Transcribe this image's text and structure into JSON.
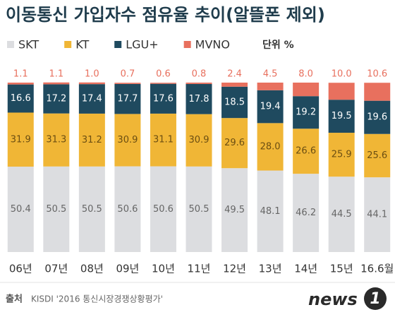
{
  "chart_data": {
    "type": "stacked-bar",
    "title": "이동통신 가입자수 점유율 추이(알뜰폰 제외)",
    "unit": "단위 %",
    "categories": [
      "06년",
      "07년",
      "08년",
      "09년",
      "10년",
      "11년",
      "12년",
      "13년",
      "14년",
      "15년",
      "16.6월"
    ],
    "ylim": [
      0,
      100
    ],
    "series": [
      {
        "name": "SKT",
        "color": "#dcdde0",
        "label_color": "#666666",
        "values": [
          50.4,
          50.5,
          50.5,
          50.6,
          50.6,
          50.5,
          49.5,
          48.1,
          46.2,
          44.5,
          44.1
        ],
        "value_labels": [
          "50.4",
          "50.5",
          "50.5",
          "50.6",
          "50.6",
          "50.5",
          "49.5",
          "48.1",
          "46.2",
          "44.5",
          "44.1"
        ]
      },
      {
        "name": "KT",
        "color": "#f0b636",
        "label_color": "#6b4e12",
        "values": [
          31.9,
          31.3,
          31.2,
          30.9,
          31.1,
          30.9,
          29.6,
          28.0,
          26.6,
          25.9,
          25.6
        ],
        "value_labels": [
          "31.9",
          "31.3",
          "31.2",
          "30.9",
          "31.1",
          "30.9",
          "29.6",
          "28.0",
          "26.6",
          "25.9",
          "25.6"
        ]
      },
      {
        "name": "LGU+",
        "color": "#1f4a5f",
        "label_color": "#ffffff",
        "values": [
          16.6,
          17.2,
          17.4,
          17.7,
          17.6,
          17.8,
          18.5,
          19.4,
          19.2,
          19.5,
          19.6
        ],
        "value_labels": [
          "16.6",
          "17.2",
          "17.4",
          "17.7",
          "17.6",
          "17.8",
          "18.5",
          "19.4",
          "19.2",
          "19.5",
          "19.6"
        ]
      },
      {
        "name": "MVNO",
        "color": "#e8705e",
        "label_color": "#e8705e",
        "values": [
          1.1,
          1.1,
          1.0,
          0.7,
          0.6,
          0.8,
          2.4,
          4.5,
          8.0,
          10.0,
          10.6
        ],
        "value_labels": [
          "1.1",
          "1.1",
          "1.0",
          "0.7",
          "0.6",
          "0.8",
          "2.4",
          "4.5",
          "8.0",
          "10.0",
          "10.6"
        ]
      }
    ]
  },
  "source": {
    "label": "출처",
    "text": "KISDI '2016 통신시장경쟁상황평가'"
  },
  "logo": {
    "word": "news",
    "number": "1"
  }
}
